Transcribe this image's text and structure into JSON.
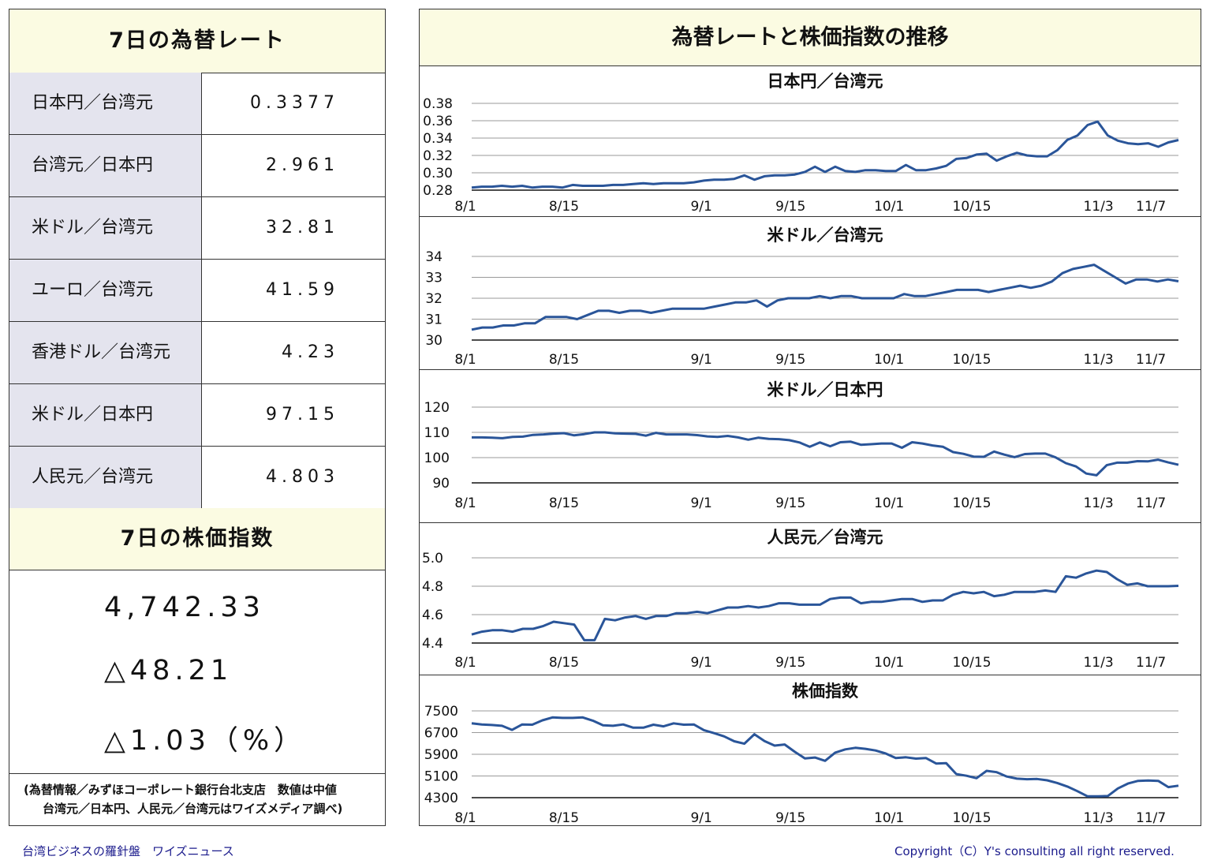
{
  "left": {
    "rates_title": "7日の為替レート",
    "rates": [
      {
        "name": "日本円／台湾元",
        "value": "0.3377"
      },
      {
        "name": "台湾元／日本円",
        "value": "2.961"
      },
      {
        "name": "米ドル／台湾元",
        "value": "32.81"
      },
      {
        "name": "ユーロ／台湾元",
        "value": "41.59"
      },
      {
        "name": "香港ドル／台湾元",
        "value": "4.23"
      },
      {
        "name": "米ドル／日本円",
        "value": "97.15"
      },
      {
        "name": "人民元／台湾元",
        "value": "4.803"
      }
    ],
    "stock_title": "7日の株価指数",
    "stock_value": "4,742.33",
    "stock_change": "△48.21",
    "stock_change_pct": "△1.03（%）",
    "source_line1": "(為替情報／みずほコーポレート銀行台北支店　数値は中値",
    "source_line2": "台湾元／日本円、人民元／台湾元はワイズメディア調べ)"
  },
  "right_title": "為替レートと株価指数の推移",
  "footer_left": "台湾ビジネスの羅針盤　ワイズニュース",
  "footer_right": "Copyright（C）Y's consulting all right reserved.",
  "chart_data": [
    {
      "type": "line",
      "title": "日本円／台湾元",
      "x_tick_labels": [
        "8/1",
        "8/15",
        "9/1",
        "9/15",
        "10/1",
        "10/15",
        "11/3",
        "11/7"
      ],
      "y_ticks": [
        "0.28",
        "0.30",
        "0.32",
        "0.34",
        "0.36",
        "0.38"
      ],
      "ylim": [
        0.28,
        0.38
      ],
      "color": "#2a5599",
      "values": [
        0.283,
        0.284,
        0.284,
        0.285,
        0.284,
        0.285,
        0.283,
        0.284,
        0.284,
        0.283,
        0.286,
        0.285,
        0.285,
        0.285,
        0.286,
        0.286,
        0.287,
        0.288,
        0.287,
        0.288,
        0.288,
        0.288,
        0.289,
        0.291,
        0.292,
        0.292,
        0.293,
        0.297,
        0.292,
        0.296,
        0.297,
        0.297,
        0.298,
        0.301,
        0.307,
        0.301,
        0.307,
        0.302,
        0.301,
        0.303,
        0.303,
        0.302,
        0.302,
        0.309,
        0.303,
        0.303,
        0.305,
        0.308,
        0.316,
        0.317,
        0.321,
        0.322,
        0.314,
        0.319,
        0.323,
        0.32,
        0.319,
        0.319,
        0.326,
        0.338,
        0.343,
        0.355,
        0.359,
        0.343,
        0.337,
        0.334,
        0.333,
        0.334,
        0.33,
        0.335,
        0.3377
      ]
    },
    {
      "type": "line",
      "title": "米ドル／台湾元",
      "x_tick_labels": [
        "8/1",
        "8/15",
        "9/1",
        "9/15",
        "10/1",
        "10/15",
        "11/3",
        "11/7"
      ],
      "y_ticks": [
        "30",
        "31",
        "32",
        "33",
        "34"
      ],
      "ylim": [
        30,
        34
      ],
      "color": "#2a5599",
      "values": [
        30.5,
        30.6,
        30.6,
        30.7,
        30.7,
        30.8,
        30.8,
        31.1,
        31.1,
        31.1,
        31.0,
        31.2,
        31.4,
        31.4,
        31.3,
        31.4,
        31.4,
        31.3,
        31.4,
        31.5,
        31.5,
        31.5,
        31.5,
        31.6,
        31.7,
        31.8,
        31.8,
        31.9,
        31.6,
        31.9,
        32.0,
        32.0,
        32.0,
        32.1,
        32.0,
        32.1,
        32.1,
        32.0,
        32.0,
        32.0,
        32.0,
        32.2,
        32.1,
        32.1,
        32.2,
        32.3,
        32.4,
        32.4,
        32.4,
        32.3,
        32.4,
        32.5,
        32.6,
        32.5,
        32.6,
        32.8,
        33.2,
        33.4,
        33.5,
        33.6,
        33.3,
        33.0,
        32.7,
        32.9,
        32.9,
        32.8,
        32.9,
        32.81
      ]
    },
    {
      "type": "line",
      "title": "米ドル／日本円",
      "x_tick_labels": [
        "8/1",
        "8/15",
        "9/1",
        "9/15",
        "10/1",
        "10/15",
        "11/3",
        "11/7"
      ],
      "y_ticks": [
        "90",
        "100",
        "110",
        "120"
      ],
      "ylim": [
        90,
        120
      ],
      "color": "#2a5599",
      "values": [
        108.0,
        108.0,
        107.9,
        107.7,
        108.2,
        108.3,
        109.0,
        109.2,
        109.5,
        109.7,
        108.8,
        109.3,
        110.0,
        110.0,
        109.6,
        109.5,
        109.4,
        108.7,
        109.8,
        109.2,
        109.2,
        109.2,
        108.9,
        108.4,
        108.2,
        108.6,
        108.0,
        107.1,
        107.9,
        107.4,
        107.3,
        106.9,
        106.0,
        104.3,
        106.0,
        104.5,
        106.1,
        106.3,
        105.1,
        105.3,
        105.6,
        105.6,
        103.9,
        106.1,
        105.6,
        104.8,
        104.3,
        102.2,
        101.5,
        100.4,
        100.3,
        102.4,
        101.2,
        100.2,
        101.4,
        101.6,
        101.6,
        100.1,
        97.8,
        96.5,
        93.7,
        93.0,
        97.0,
        98.0,
        98.0,
        98.6,
        98.5,
        99.2,
        98.1,
        97.15
      ]
    },
    {
      "type": "line",
      "title": "人民元／台湾元",
      "x_tick_labels": [
        "8/1",
        "8/15",
        "9/1",
        "9/15",
        "10/1",
        "10/15",
        "11/3",
        "11/7"
      ],
      "y_ticks": [
        "4.4",
        "4.6",
        "4.8",
        "5.0"
      ],
      "ylim": [
        4.4,
        5.0
      ],
      "color": "#2a5599",
      "values": [
        4.46,
        4.48,
        4.49,
        4.49,
        4.48,
        4.5,
        4.5,
        4.52,
        4.55,
        4.54,
        4.53,
        4.42,
        4.42,
        4.57,
        4.56,
        4.58,
        4.59,
        4.57,
        4.59,
        4.59,
        4.61,
        4.61,
        4.62,
        4.61,
        4.63,
        4.65,
        4.65,
        4.66,
        4.65,
        4.66,
        4.68,
        4.68,
        4.67,
        4.67,
        4.67,
        4.71,
        4.72,
        4.72,
        4.68,
        4.69,
        4.69,
        4.7,
        4.71,
        4.71,
        4.69,
        4.7,
        4.7,
        4.74,
        4.76,
        4.75,
        4.76,
        4.73,
        4.74,
        4.76,
        4.76,
        4.76,
        4.77,
        4.76,
        4.87,
        4.86,
        4.89,
        4.91,
        4.9,
        4.85,
        4.81,
        4.82,
        4.8,
        4.8,
        4.8,
        4.803
      ]
    },
    {
      "type": "line",
      "title": "株価指数",
      "x_tick_labels": [
        "8/1",
        "8/15",
        "9/1",
        "9/15",
        "10/1",
        "10/15",
        "11/3",
        "11/7"
      ],
      "y_ticks": [
        "4300",
        "5100",
        "5900",
        "6700",
        "7500"
      ],
      "ylim": [
        4300,
        7500
      ],
      "color": "#2a5599",
      "values": [
        7040,
        7000,
        6980,
        6950,
        6800,
        7000,
        6990,
        7150,
        7260,
        7240,
        7240,
        7260,
        7140,
        6970,
        6950,
        7000,
        6880,
        6880,
        6990,
        6930,
        7040,
        6990,
        7000,
        6790,
        6680,
        6560,
        6380,
        6290,
        6640,
        6390,
        6220,
        6260,
        5990,
        5750,
        5780,
        5660,
        5960,
        6080,
        6140,
        6100,
        6040,
        5930,
        5760,
        5790,
        5740,
        5760,
        5560,
        5570,
        5170,
        5110,
        5020,
        5290,
        5240,
        5080,
        5000,
        4980,
        4990,
        4940,
        4840,
        4710,
        4540,
        4350,
        4350,
        4360,
        4640,
        4820,
        4920,
        4930,
        4920,
        4690,
        4742.33
      ]
    }
  ]
}
